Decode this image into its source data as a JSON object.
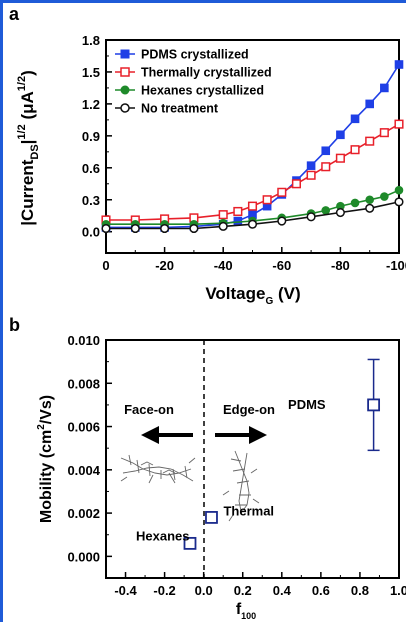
{
  "chart_data": [
    {
      "type": "line",
      "panel_label": "a",
      "ylabel_main": "|Current",
      "ylabel_sub": "DS",
      "ylabel_exp": "1/2",
      "ylabel_unit_open": "(μA",
      "ylabel_unit_exp": "1/2",
      "ylabel_unit_close": ")",
      "xlabel_main": "Voltage",
      "xlabel_sub": "G",
      "xlabel_unit": "(V)",
      "xlim": [
        0,
        -100
      ],
      "ylim": [
        -0.2,
        1.8
      ],
      "xticks": [
        "0",
        "-20",
        "-40",
        "-60",
        "-80",
        "-100"
      ],
      "yticks": [
        "0.0",
        "0.3",
        "0.6",
        "0.9",
        "1.2",
        "1.5",
        "1.8"
      ],
      "legend_position": "top-left",
      "series": [
        {
          "name": "PDMS crystallized",
          "color": "#1f3fe6",
          "marker": "filled-square",
          "x": [
            0,
            -10,
            -20,
            -30,
            -40,
            -45,
            -50,
            -55,
            -60,
            -65,
            -70,
            -75,
            -80,
            -85,
            -90,
            -95,
            -100
          ],
          "y": [
            0.04,
            0.04,
            0.04,
            0.05,
            0.07,
            0.1,
            0.16,
            0.24,
            0.35,
            0.48,
            0.62,
            0.76,
            0.91,
            1.06,
            1.2,
            1.35,
            1.57
          ]
        },
        {
          "name": "Thermally crystallized",
          "color": "#e8202a",
          "marker": "open-square",
          "x": [
            0,
            -10,
            -20,
            -30,
            -40,
            -45,
            -50,
            -55,
            -60,
            -65,
            -70,
            -75,
            -80,
            -85,
            -90,
            -95,
            -100
          ],
          "y": [
            0.11,
            0.11,
            0.12,
            0.13,
            0.16,
            0.19,
            0.24,
            0.3,
            0.37,
            0.45,
            0.53,
            0.61,
            0.69,
            0.77,
            0.85,
            0.93,
            1.01
          ]
        },
        {
          "name": "Hexanes crystallized",
          "color": "#1f8a2a",
          "marker": "filled-circle",
          "x": [
            0,
            -10,
            -20,
            -30,
            -40,
            -50,
            -60,
            -70,
            -75,
            -80,
            -85,
            -90,
            -95,
            -100
          ],
          "y": [
            0.07,
            0.07,
            0.07,
            0.07,
            0.08,
            0.1,
            0.13,
            0.17,
            0.2,
            0.24,
            0.27,
            0.3,
            0.33,
            0.39
          ]
        },
        {
          "name": "No treatment",
          "color": "#111111",
          "marker": "open-circle",
          "x": [
            0,
            -10,
            -20,
            -30,
            -40,
            -50,
            -60,
            -70,
            -80,
            -90,
            -100
          ],
          "y": [
            0.03,
            0.03,
            0.03,
            0.03,
            0.05,
            0.07,
            0.1,
            0.14,
            0.18,
            0.22,
            0.28
          ]
        }
      ]
    },
    {
      "type": "scatter",
      "panel_label": "b",
      "ylabel": "Mobility (cm",
      "ylabel_exp": "2",
      "ylabel_tail": "/Vs)",
      "xlabel_main": "f",
      "xlabel_sub": "100",
      "xlim": [
        -0.5,
        1.0
      ],
      "ylim": [
        -0.001,
        0.01
      ],
      "xticks": [
        "-0.4",
        "-0.2",
        "0.0",
        "0.2",
        "0.4",
        "0.6",
        "0.8",
        "1.0"
      ],
      "yticks": [
        "0.000",
        "0.002",
        "0.004",
        "0.006",
        "0.008",
        "0.010"
      ],
      "marker_color": "#1a2a8c",
      "points": [
        {
          "label": "Hexanes",
          "color": "#1f8a2a",
          "x": -0.07,
          "y": 0.0006,
          "err": 0
        },
        {
          "label": "Thermal",
          "color": "#e8202a",
          "x": 0.04,
          "y": 0.0018,
          "err": 0
        },
        {
          "label": "PDMS",
          "color": "#1f3fe6",
          "x": 0.87,
          "y": 0.007,
          "err": 0.0021
        }
      ],
      "annotations": {
        "left": "Face-on",
        "right": "Edge-on"
      }
    }
  ]
}
